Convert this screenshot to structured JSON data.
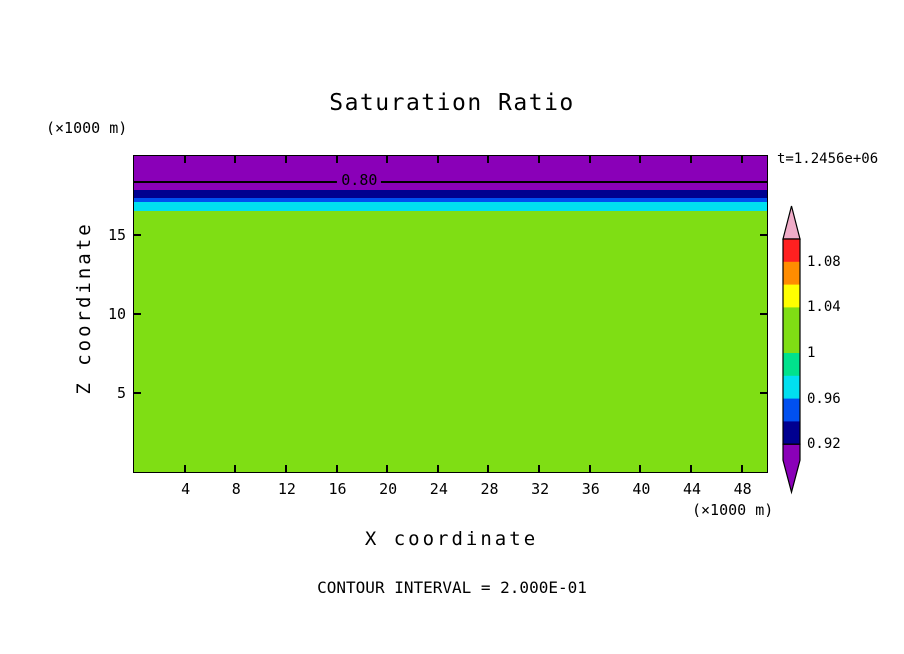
{
  "chart_data": {
    "type": "heatmap",
    "title": "Saturation Ratio",
    "xlabel": "X coordinate",
    "ylabel": "Z coordinate",
    "x_unit": "(×1000 m)",
    "y_unit": "(×1000 m)",
    "time_annotation": "t=1.2456e+06",
    "contour_interval_note": "CONTOUR INTERVAL = 2.000E-01",
    "xlim": [
      0,
      50
    ],
    "ylim": [
      0,
      20
    ],
    "xticks": [
      4,
      8,
      12,
      16,
      20,
      24,
      28,
      32,
      36,
      40,
      44,
      48
    ],
    "yticks": [
      5,
      10,
      15
    ],
    "bands": [
      {
        "color": "#8A00B8",
        "z_top": 20,
        "z_bottom": 17.85
      },
      {
        "color": "#000090",
        "z_top": 17.85,
        "z_bottom": 17.35
      },
      {
        "color": "#0050F0",
        "z_top": 17.35,
        "z_bottom": 17.1
      },
      {
        "color": "#00E0F0",
        "z_top": 17.1,
        "z_bottom": 16.55
      },
      {
        "color": "#7FDE14",
        "z_top": 16.55,
        "z_bottom": 0
      }
    ],
    "contour_line": {
      "z": 18.42,
      "label": "0.80",
      "label_x": 17.8
    },
    "colorbar": {
      "labels": [
        {
          "text": "1.08",
          "at_units": 1
        },
        {
          "text": "1.04",
          "at_units": 3
        },
        {
          "text": "1",
          "at_units": 5
        },
        {
          "text": "0.96",
          "at_units": 7
        },
        {
          "text": "0.92",
          "at_units": 9
        }
      ],
      "segments_top_to_bottom": [
        {
          "name": "above-range-arrow",
          "shape": "arrow-up",
          "color": "#F0ACC8"
        },
        {
          "name": "red",
          "units": 1,
          "color": "#FF2020"
        },
        {
          "name": "orange",
          "units": 1,
          "color": "#FF8C00"
        },
        {
          "name": "yellow",
          "units": 1,
          "color": "#FFFF00"
        },
        {
          "name": "yellow-green",
          "units": 2,
          "color": "#7FDE14"
        },
        {
          "name": "spring-green",
          "units": 1,
          "color": "#00E28C"
        },
        {
          "name": "cyan",
          "units": 1,
          "color": "#00E0F0"
        },
        {
          "name": "blue",
          "units": 1,
          "color": "#0050F0"
        },
        {
          "name": "navy",
          "units": 1,
          "color": "#000090"
        },
        {
          "name": "below-range-arrow",
          "shape": "arrow-down",
          "color": "#8A00B8"
        }
      ]
    }
  }
}
